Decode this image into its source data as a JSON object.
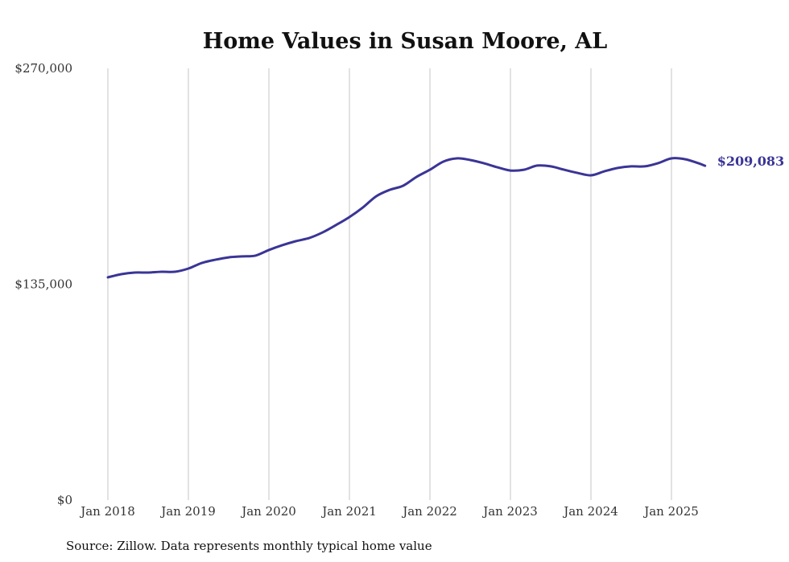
{
  "chart_data": {
    "type": "line",
    "title": "Home Values in Susan Moore, AL",
    "xlabel": "",
    "ylabel": "",
    "ylim": [
      0,
      270000
    ],
    "y_ticks": [
      {
        "value": 0,
        "label": "$0"
      },
      {
        "value": 135000,
        "label": "$135,000"
      },
      {
        "value": 270000,
        "label": "$270,000"
      }
    ],
    "x_ticks": [
      {
        "value": 2018,
        "label": "Jan 2018"
      },
      {
        "value": 2019,
        "label": "Jan 2019"
      },
      {
        "value": 2020,
        "label": "Jan 2020"
      },
      {
        "value": 2021,
        "label": "Jan 2021"
      },
      {
        "value": 2022,
        "label": "Jan 2022"
      },
      {
        "value": 2023,
        "label": "Jan 2023"
      },
      {
        "value": 2024,
        "label": "Jan 2024"
      },
      {
        "value": 2025,
        "label": "Jan 2025"
      }
    ],
    "grid": "vertical",
    "series": [
      {
        "name": "Typical home value",
        "color": "#3a3596",
        "x": [
          2018.0,
          2018.167,
          2018.333,
          2018.5,
          2018.667,
          2018.833,
          2019.0,
          2019.167,
          2019.333,
          2019.5,
          2019.667,
          2019.833,
          2020.0,
          2020.167,
          2020.333,
          2020.5,
          2020.667,
          2020.833,
          2021.0,
          2021.167,
          2021.333,
          2021.5,
          2021.667,
          2021.833,
          2022.0,
          2022.167,
          2022.333,
          2022.5,
          2022.667,
          2022.833,
          2023.0,
          2023.167,
          2023.333,
          2023.5,
          2023.667,
          2023.833,
          2024.0,
          2024.167,
          2024.333,
          2024.5,
          2024.667,
          2024.833,
          2025.0,
          2025.167,
          2025.333,
          2025.417
        ],
        "values": [
          139300,
          141300,
          142300,
          142300,
          142800,
          142800,
          144800,
          148300,
          150300,
          151800,
          152400,
          152900,
          156400,
          159400,
          161900,
          163900,
          167400,
          172000,
          177000,
          183000,
          190000,
          194000,
          196600,
          202100,
          206600,
          211700,
          213700,
          212700,
          210700,
          208200,
          206100,
          206600,
          209200,
          208700,
          206600,
          204600,
          203100,
          205600,
          207700,
          208700,
          208700,
          210700,
          213700,
          213200,
          210700,
          209083
        ]
      }
    ],
    "annotations": [
      {
        "label": "$209,083",
        "target": "last-point"
      }
    ]
  },
  "source": "Source: Zillow. Data represents monthly typical home value"
}
